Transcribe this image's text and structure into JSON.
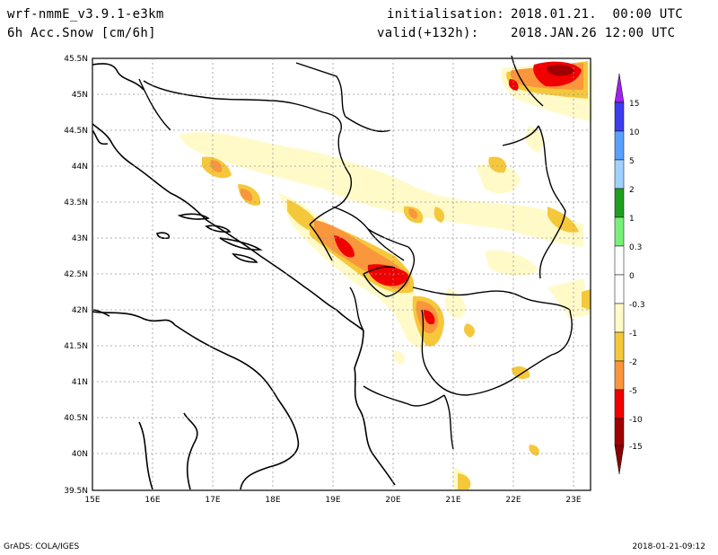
{
  "header": {
    "model": "wrf-nmmE_v3.9.1-e3km",
    "field": "6h Acc.Snow [cm/6h]",
    "init_label": "initialisation:",
    "init_value": "2018.01.21.  00:00 UTC",
    "valid_label": "valid(+132h):",
    "valid_value": "2018.JAN.26 12:00 UTC"
  },
  "axes": {
    "lat_ticks": [
      "45.5N",
      "45N",
      "44.5N",
      "44N",
      "43.5N",
      "43N",
      "42.5N",
      "42N",
      "41.5N",
      "41N",
      "40.5N",
      "40N",
      "39.5N"
    ],
    "lon_ticks": [
      "15E",
      "16E",
      "17E",
      "18E",
      "19E",
      "20E",
      "21E",
      "22E",
      "23E"
    ],
    "lat_range": [
      39.5,
      45.5
    ],
    "lon_range": [
      15,
      23.3
    ]
  },
  "legend": {
    "labels": [
      "15",
      "10",
      "5",
      "2",
      "1",
      "0.3",
      "0",
      "-0.3",
      "-1",
      "-2",
      "-5",
      "-10",
      "-15"
    ],
    "colors": [
      "#a020f0",
      "#3c3cf0",
      "#5aa0ff",
      "#a0d2ff",
      "#1ea01e",
      "#78f078",
      "#ffffff",
      "#ffffff",
      "#fffac8",
      "#f5c83c",
      "#fa963c",
      "#f00000",
      "#a00000",
      "#8b0000"
    ]
  },
  "footer": {
    "left": "GrADS: COLA/IGES",
    "right": "2018-01-21-09:12"
  }
}
